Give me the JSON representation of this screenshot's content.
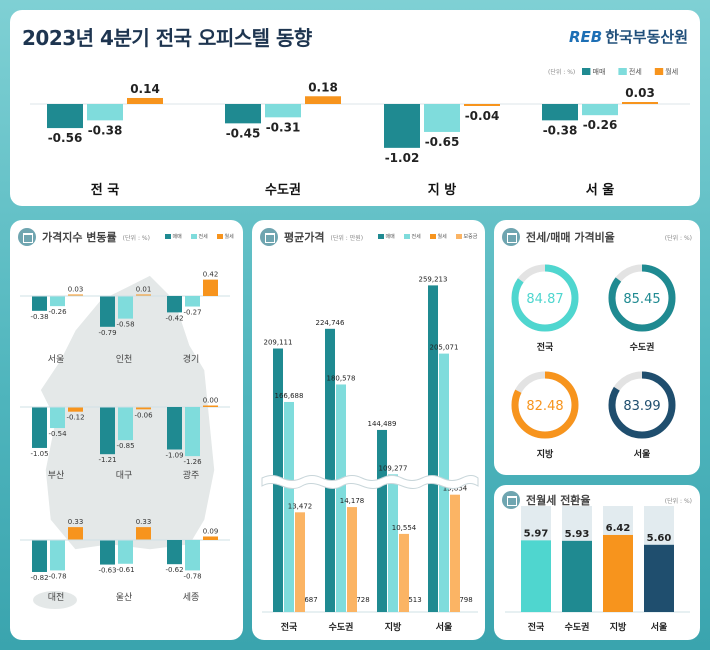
{
  "header": {
    "title": "2023년 4분기 전국 오피스텔 동향",
    "logo_mark": "REB",
    "logo_text": "한국부동산원"
  },
  "colors": {
    "sale": "#1f8a91",
    "jeonse": "#7fdcdc",
    "monthly": "#f7941d",
    "deposit": "#fbb464",
    "navy": "#1f4e6e",
    "turquoise": "#4fd6cf"
  },
  "legend": {
    "unit_pct": "(단위 : %)",
    "unit_price": "(단위 : 만원)",
    "sale": "매매",
    "jeonse": "전세",
    "monthly": "월세",
    "deposit": "보증금"
  },
  "chart_data": [
    {
      "type": "bar",
      "title": "",
      "categories": [
        "전 국",
        "수도권",
        "지 방",
        "서 울"
      ],
      "series": [
        {
          "name": "매매",
          "values": [
            -0.56,
            -0.45,
            -1.02,
            -0.38
          ]
        },
        {
          "name": "전세",
          "values": [
            -0.38,
            -0.31,
            -0.65,
            -0.26
          ]
        },
        {
          "name": "월세",
          "values": [
            0.14,
            0.18,
            -0.04,
            0.03
          ]
        }
      ],
      "labels": [
        "-0.56",
        "-0.38",
        "0.14",
        "-0.45",
        "-0.31",
        "0.18",
        "-1.02",
        "-0.65",
        "-0.04",
        "-0.38",
        "-0.26",
        "0.03"
      ]
    },
    {
      "type": "bar",
      "title": "가격지수 변동률",
      "unit": "(단위 : %)",
      "categories": [
        "서울",
        "인천",
        "경기",
        "부산",
        "대구",
        "광주",
        "대전",
        "울산",
        "세종"
      ],
      "series": [
        {
          "name": "매매",
          "values": [
            -0.38,
            -0.79,
            -0.42,
            -1.05,
            -1.21,
            -1.09,
            -0.82,
            -0.63,
            -0.62
          ]
        },
        {
          "name": "전세",
          "values": [
            -0.26,
            -0.58,
            -0.27,
            -0.54,
            -0.85,
            -1.26,
            -0.78,
            -0.61,
            -0.78
          ]
        },
        {
          "name": "월세",
          "values": [
            0.03,
            0.01,
            0.42,
            -0.12,
            -0.06,
            0.0,
            0.33,
            0.33,
            0.09
          ]
        }
      ],
      "labels": [
        [
          "-0.38",
          "-0.26",
          "0.03"
        ],
        [
          "-0.79",
          "-0.58",
          "0.01"
        ],
        [
          "-0.42",
          "-0.27",
          "0.42"
        ],
        [
          "-1.05",
          "-0.54",
          "-0.12"
        ],
        [
          "-1.21",
          "-0.85",
          "-0.06"
        ],
        [
          "-1.09",
          "-1.26",
          "0.00"
        ],
        [
          "-0.82",
          "-0.78",
          "0.33"
        ],
        [
          "-0.63",
          "-0.61",
          "0.33"
        ],
        [
          "-0.62",
          "-0.78",
          "0.09"
        ]
      ]
    },
    {
      "type": "bar",
      "title": "평균가격",
      "unit": "(단위 : 만원)",
      "categories": [
        "전국",
        "수도권",
        "지방",
        "서울"
      ],
      "series": [
        {
          "name": "매매",
          "values": [
            209111,
            224746,
            144489,
            259213
          ]
        },
        {
          "name": "전세",
          "values": [
            166688,
            180578,
            109277,
            205071
          ]
        },
        {
          "name": "월세",
          "values": [
            687,
            728,
            513,
            798
          ]
        },
        {
          "name": "보증금",
          "values": [
            13472,
            14178,
            10554,
            15854
          ]
        }
      ],
      "labels": [
        [
          "209,111",
          "166,688",
          "687",
          "13,472"
        ],
        [
          "224,746",
          "180,578",
          "728",
          "14,178"
        ],
        [
          "144,489",
          "109,277",
          "513",
          "10,554"
        ],
        [
          "259,213",
          "205,071",
          "798",
          "15,854"
        ]
      ],
      "axis_break": true
    },
    {
      "type": "pie",
      "title": "전세/매매 가격비율",
      "unit": "(단위 : %)",
      "categories": [
        "전국",
        "수도권",
        "지방",
        "서울"
      ],
      "values": [
        84.87,
        85.45,
        82.48,
        83.99
      ],
      "labels": [
        "84.87",
        "85.45",
        "82.48",
        "83.99"
      ]
    },
    {
      "type": "bar",
      "title": "전월세 전환율",
      "unit": "(단위 : %)",
      "categories": [
        "전국",
        "수도권",
        "지방",
        "서울"
      ],
      "values": [
        5.97,
        5.93,
        6.42,
        5.6
      ],
      "labels": [
        "5.97",
        "5.93",
        "6.42",
        "5.60"
      ]
    }
  ]
}
